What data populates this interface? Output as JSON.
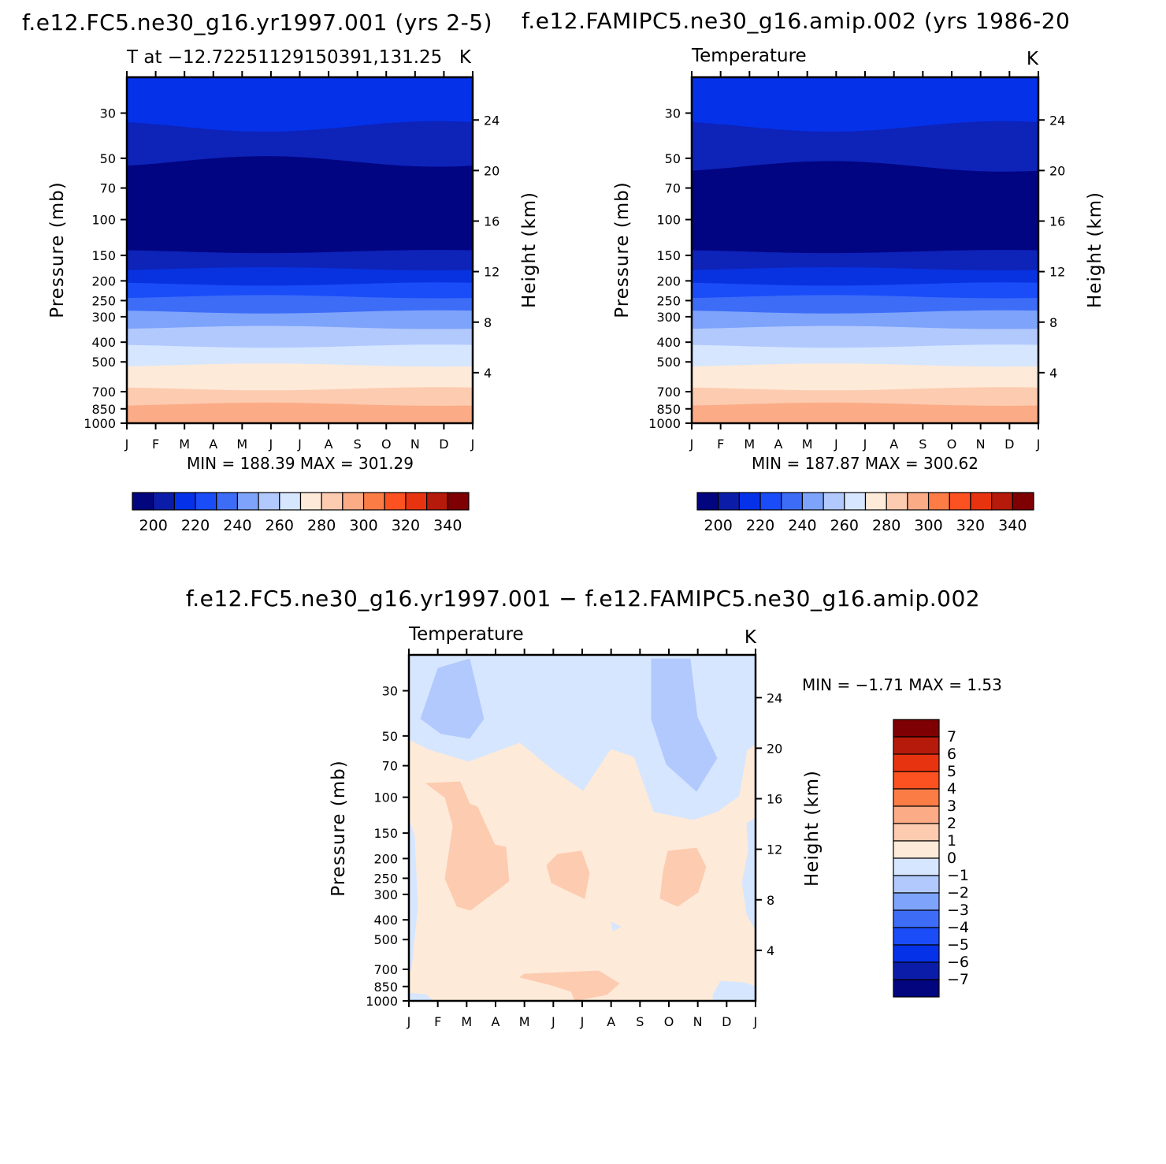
{
  "figure": {
    "title_left": "f.e12.FC5.ne30_g16.yr1997.001 (yrs 2-5)",
    "title_right": "f.e12.FAMIPC5.ne30_g16.amip.002 (yrs 1986-20",
    "title_diff": "f.e12.FC5.ne30_g16.yr1997.001 − f.e12.FAMIPC5.ne30_g16.amip.002"
  },
  "chart_data": [
    {
      "type": "heatmap",
      "id": "case",
      "subtitle_left": "T at −12.7225112915039​1,131.25",
      "subtitle_right": "K",
      "xlabel": "",
      "ylabel": "Pressure (mb)",
      "ylabel_right": "Height (km)",
      "x_ticks": [
        "J",
        "F",
        "M",
        "A",
        "M",
        "J",
        "J",
        "A",
        "S",
        "O",
        "N",
        "D",
        "J"
      ],
      "pressure_ticks": [
        30,
        50,
        70,
        100,
        150,
        200,
        250,
        300,
        400,
        500,
        700,
        850,
        1000
      ],
      "pressure_range": [
        20,
        1000
      ],
      "height_ticks": [
        4,
        8,
        12,
        16,
        20,
        24
      ],
      "stats_text": "MIN = 188.39 MAX = 301.29",
      "min": 188.39,
      "max": 301.29,
      "colorbar_labels": [
        "200",
        "220",
        "240",
        "260",
        "280",
        "300",
        "320",
        "340"
      ],
      "band_pressures": [
        20,
        35,
        52,
        144,
        175,
        208,
        240,
        285,
        340,
        420,
        520,
        680,
        810,
        1000
      ],
      "band_colors": [
        "#0531e8",
        "#0e23b8",
        "#020582",
        "#0e23b8",
        "#0832df",
        "#1a4cf8",
        "#3d6cf7",
        "#7da3fb",
        "#b2c9fe",
        "#d6e6ff",
        "#feead8",
        "#fccbb0",
        "#fbab86"
      ]
    },
    {
      "type": "heatmap",
      "id": "control",
      "subtitle_left": "Temperature",
      "subtitle_right": "K",
      "xlabel": "",
      "ylabel": "Pressure (mb)",
      "ylabel_right": "Height (km)",
      "x_ticks": [
        "J",
        "F",
        "M",
        "A",
        "M",
        "J",
        "J",
        "A",
        "S",
        "O",
        "N",
        "D",
        "J"
      ],
      "pressure_ticks": [
        30,
        50,
        70,
        100,
        150,
        200,
        250,
        300,
        400,
        500,
        700,
        850,
        1000
      ],
      "pressure_range": [
        20,
        1000
      ],
      "height_ticks": [
        4,
        8,
        12,
        16,
        20,
        24
      ],
      "stats_text": "MIN = 187.87 MAX = 300.62",
      "min": 187.87,
      "max": 300.62,
      "colorbar_labels": [
        "200",
        "220",
        "240",
        "260",
        "280",
        "300",
        "320",
        "340"
      ],
      "band_pressures": [
        20,
        35,
        55,
        144,
        175,
        208,
        240,
        285,
        340,
        420,
        520,
        680,
        810,
        1000
      ],
      "band_colors": [
        "#0531e8",
        "#0e23b8",
        "#020582",
        "#0e23b8",
        "#0832df",
        "#1a4cf8",
        "#3d6cf7",
        "#7da3fb",
        "#b2c9fe",
        "#d6e6ff",
        "#feead8",
        "#fccbb0",
        "#fbab86"
      ]
    },
    {
      "type": "heatmap",
      "id": "difference",
      "subtitle_left": "Temperature",
      "subtitle_right": "K",
      "xlabel": "",
      "ylabel": "Pressure (mb)",
      "ylabel_right": "Height (km)",
      "x_ticks": [
        "J",
        "F",
        "M",
        "A",
        "M",
        "J",
        "J",
        "A",
        "S",
        "O",
        "N",
        "D",
        "J"
      ],
      "pressure_ticks": [
        30,
        50,
        70,
        100,
        150,
        200,
        250,
        300,
        400,
        500,
        700,
        850,
        1000
      ],
      "pressure_range": [
        20,
        1000
      ],
      "height_ticks": [
        4,
        8,
        12,
        16,
        20,
        24
      ],
      "stats_text": "MIN = −1.71 MAX = 1.53",
      "min": -1.71,
      "max": 1.53,
      "colorbar_labels": [
        "7",
        "6",
        "5",
        "4",
        "3",
        "2",
        "1",
        "0",
        "−1",
        "−2",
        "−3",
        "−4",
        "−5",
        "−6",
        "−7"
      ]
    }
  ],
  "colors": {
    "diverging_16": [
      "#02057e",
      "#0b1da8",
      "#0531e8",
      "#1a4cf8",
      "#3d6cf7",
      "#7da3fb",
      "#b2c9fe",
      "#d6e6ff",
      "#feead8",
      "#fccbb0",
      "#fbab86",
      "#fc7c46",
      "#fc5120",
      "#e73310",
      "#b61a0a",
      "#7e0003"
    ],
    "diff_colorbar": [
      "#7e0003",
      "#b61a0a",
      "#e73310",
      "#fc5120",
      "#fc7c46",
      "#fbab86",
      "#fccbb0",
      "#feead8",
      "#d6e6ff",
      "#b2c9fe",
      "#7da3fb",
      "#3d6cf7",
      "#1a4cf8",
      "#0531e8",
      "#0b1da8",
      "#02057e"
    ],
    "diff_background": "#feead8",
    "diff_pos1": "#fccbb0",
    "diff_neg0": "#d6e6ff",
    "diff_neg1": "#b2c9fe"
  }
}
